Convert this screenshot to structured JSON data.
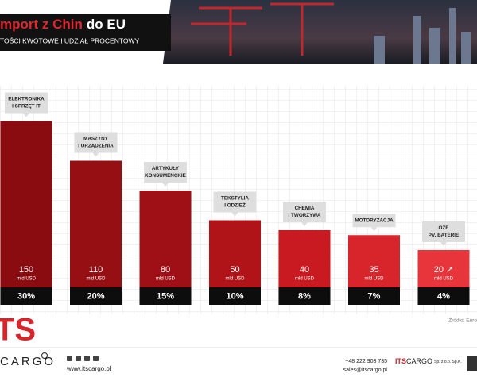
{
  "header": {
    "title_red": "mport z Chin",
    "title_white": "do EU",
    "subtitle": "TOŚCI KWOTOWE I UDZIAŁ PROCENTOWY"
  },
  "chart_data": {
    "type": "bar",
    "categories": [
      [
        "ELEKTRONIKA",
        "I SPRZĘT IT"
      ],
      [
        "MASZYNY",
        "I URZĄDZENIA"
      ],
      [
        "ARTYKUŁY",
        "KONSUMENCKIE"
      ],
      [
        "TEKSTYLIA",
        "I ODZIEŻ"
      ],
      [
        "CHEMIA",
        "I TWORZYWA"
      ],
      [
        "MOTORYZACJA"
      ],
      [
        "OZE",
        "PV, BATERIE"
      ]
    ],
    "values": [
      150,
      110,
      80,
      50,
      40,
      35,
      20
    ],
    "value_labels": [
      "150",
      "110",
      "80",
      "50",
      "40",
      "35",
      "20 ↗"
    ],
    "unit": "mld USD",
    "colors": [
      "#8a0c10",
      "#960f13",
      "#9e1015",
      "#b01419",
      "#c81a20",
      "#d8252b",
      "#e8353b"
    ],
    "shares": {
      "values": [
        30,
        20,
        15,
        10,
        8,
        7,
        4
      ],
      "value_labels": [
        "30%",
        "20%",
        "15%",
        "10%",
        "8%",
        "7%",
        "4%"
      ]
    },
    "source": "Źródło: Euro"
  },
  "footer": {
    "logo_ts": "TS",
    "logo_cargo": "CARGO",
    "website": "www.itscargo.pl",
    "phone": "+48 222 903 735",
    "email": "sales@itscargo.pl",
    "brand_its": "ITS",
    "brand_cargo": "CARGO",
    "brand_suffix": "Sp. z o.o. Sp.K."
  }
}
